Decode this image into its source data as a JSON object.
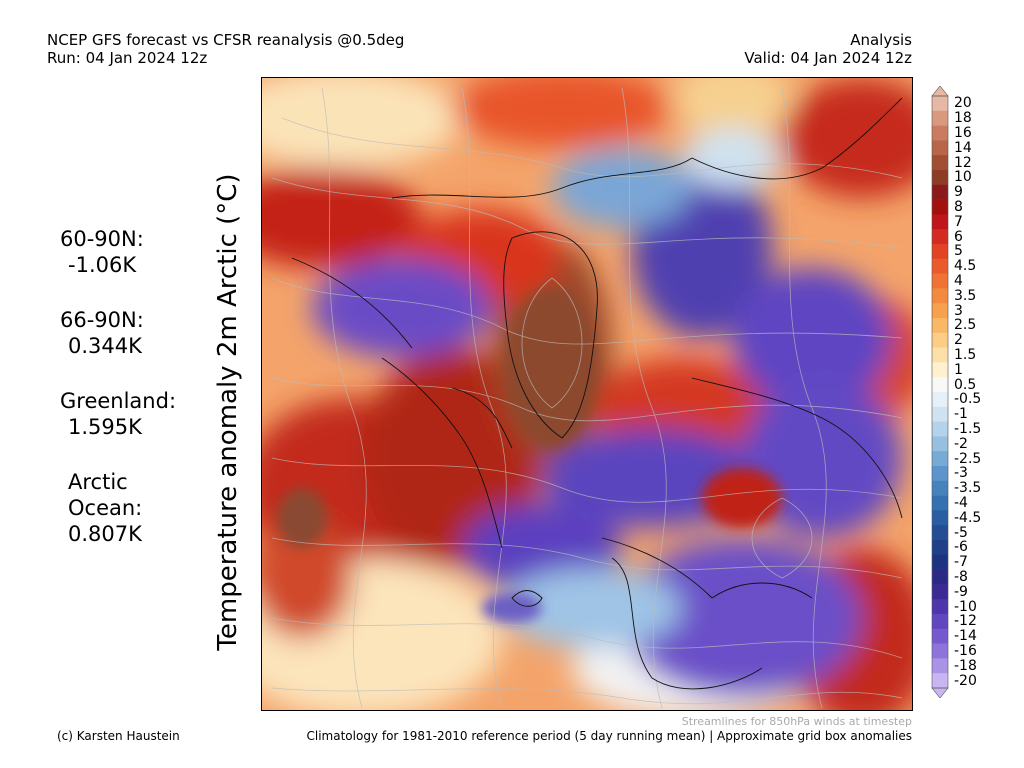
{
  "header": {
    "title_line1": "NCEP GFS forecast vs CFSR reanalysis @0.5deg",
    "title_line2": "Run: 04 Jan 2024 12z",
    "right_line1": "Analysis",
    "right_line2": "Valid: 04 Jan 2024 12z"
  },
  "ylabel": "Temperature anomaly 2m Arctic (°C)",
  "stats": [
    {
      "name": "60-90N:",
      "value": "-1.06K"
    },
    {
      "name": "66-90N:",
      "value": "0.344K"
    },
    {
      "name": "Greenland:",
      "value": "1.595K"
    },
    {
      "name": "Arctic Ocean:",
      "value": "0.807K"
    }
  ],
  "colorbar": {
    "labels": [
      "20",
      "18",
      "16",
      "14",
      "12",
      "10",
      "9",
      "8",
      "7",
      "6",
      "5",
      "4.5",
      "4",
      "3.5",
      "3",
      "2.5",
      "2",
      "1.5",
      "1",
      "0.5",
      "-0.5",
      "-1",
      "-1.5",
      "-2",
      "-2.5",
      "-3",
      "-3.5",
      "-4",
      "-4.5",
      "-5",
      "-6",
      "-7",
      "-8",
      "-9",
      "-10",
      "-12",
      "-14",
      "-16",
      "-18",
      "-20"
    ],
    "colors": [
      "#e7b8a4",
      "#d9997e",
      "#c97c60",
      "#b8654a",
      "#a24e35",
      "#8f3c26",
      "#8b1a1a",
      "#a31010",
      "#c0161a",
      "#d42a20",
      "#e24324",
      "#ea5a2a",
      "#f07334",
      "#f48a40",
      "#f7a04e",
      "#f9b866",
      "#fbcd86",
      "#fde0a8",
      "#fff0cf",
      "#f8f8f8",
      "#e6f0f8",
      "#cfe2f1",
      "#b4d2e9",
      "#97c0e0",
      "#78aad6",
      "#5c95cb",
      "#4682be",
      "#3570b0",
      "#2a5ea2",
      "#244e94",
      "#1f3f88",
      "#1e3282",
      "#2a2a86",
      "#3b2a96",
      "#4d35ab",
      "#6046bf",
      "#7559cf",
      "#8d73db",
      "#a993e6",
      "#c8b6f0"
    ]
  },
  "map": {
    "stream_note": "Streamlines for 850hPa winds at timestep"
  },
  "footer": {
    "credit": "(c) Karsten Haustein",
    "climatology": "Climatology for 1981-2010 reference period (5 day running mean) | Approximate grid box anomalies"
  }
}
